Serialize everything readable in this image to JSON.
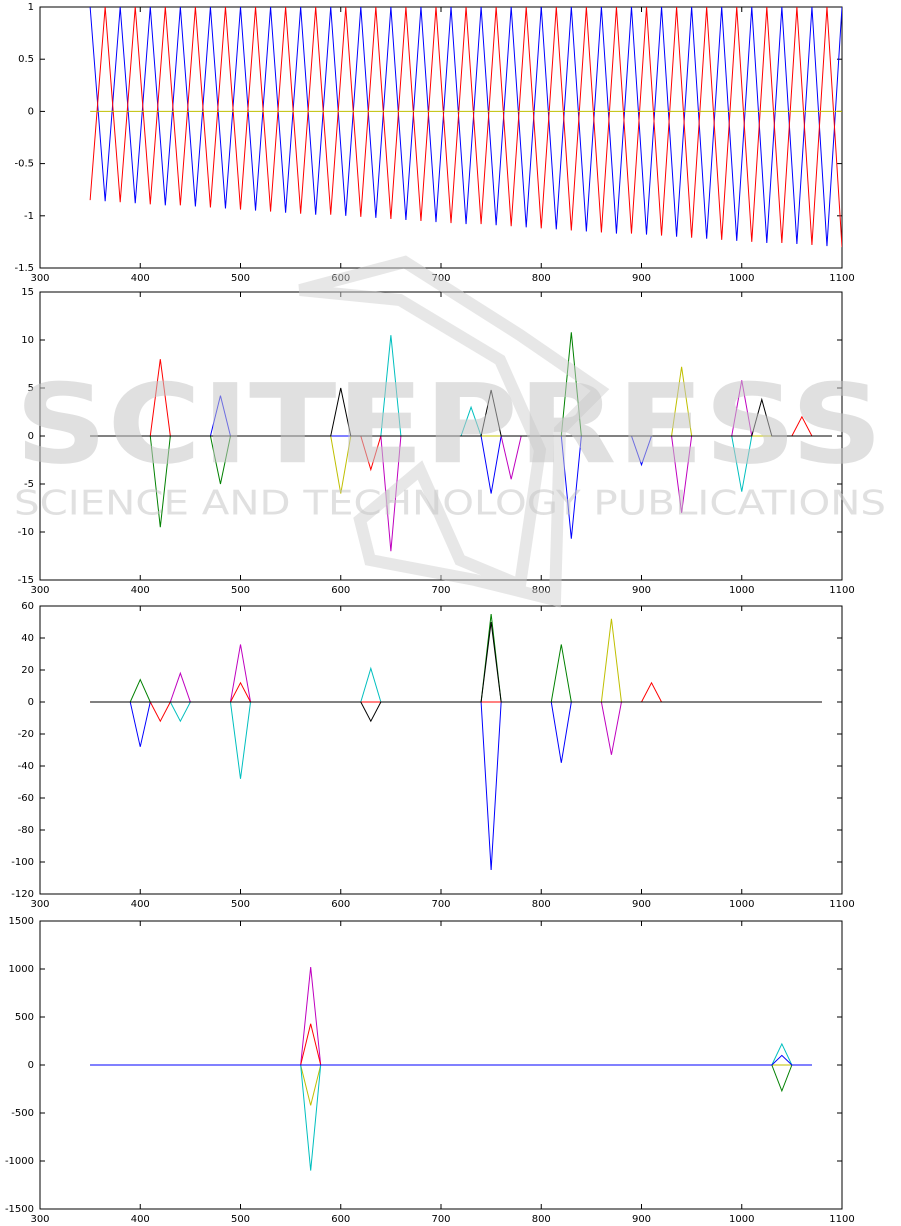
{
  "chart_data": [
    {
      "type": "line",
      "xlim": [
        300,
        1100
      ],
      "xticks": [
        300,
        400,
        500,
        600,
        700,
        800,
        900,
        1000,
        1100
      ],
      "ylim": [
        -1.5,
        1
      ],
      "yticks": [
        -1.5,
        -1,
        -0.5,
        0,
        0.5,
        1
      ],
      "x": [
        350,
        365,
        380,
        395,
        410,
        425,
        440,
        455,
        470,
        485,
        500,
        515,
        530,
        545,
        560,
        575,
        590,
        605,
        620,
        635,
        650,
        665,
        680,
        695,
        710,
        725,
        740,
        755,
        770,
        785,
        800,
        815,
        830,
        845,
        860,
        875,
        890,
        905,
        920,
        935,
        950,
        965,
        980,
        995,
        1010,
        1025,
        1040,
        1055,
        1070,
        1085,
        1100
      ],
      "series": [
        {
          "color": "#0000ff",
          "values": [
            1,
            -0.86,
            1,
            -0.88,
            1,
            -0.9,
            1,
            -0.91,
            1,
            -0.93,
            1,
            -0.95,
            1,
            -0.97,
            1,
            -0.99,
            1,
            -1.0,
            1,
            -1.02,
            1,
            -1.04,
            1,
            -1.06,
            1,
            -1.08,
            1,
            -1.09,
            1,
            -1.11,
            1,
            -1.13,
            1,
            -1.15,
            1,
            -1.17,
            1,
            -1.18,
            1,
            -1.2,
            1,
            -1.22,
            1,
            -1.24,
            1,
            -1.26,
            1,
            -1.27,
            1,
            -1.29,
            1
          ]
        },
        {
          "color": "#ff0000",
          "values": [
            -0.85,
            1,
            -0.87,
            1,
            -0.89,
            1,
            -0.9,
            1,
            -0.92,
            1,
            -0.94,
            1,
            -0.96,
            1,
            -0.98,
            1,
            -0.99,
            1,
            -1.01,
            1,
            -1.03,
            1,
            -1.05,
            1,
            -1.07,
            1,
            -1.08,
            1,
            -1.1,
            1,
            -1.12,
            1,
            -1.14,
            1,
            -1.16,
            1,
            -1.17,
            1,
            -1.19,
            1,
            -1.21,
            1,
            -1.23,
            1,
            -1.25,
            1,
            -1.26,
            1,
            -1.28,
            1,
            -1.3
          ]
        },
        {
          "color": "#bfbf00",
          "x": [
            350,
            1100
          ],
          "values": [
            0,
            0
          ]
        }
      ]
    },
    {
      "type": "line",
      "xlim": [
        300,
        1100
      ],
      "xticks": [
        300,
        400,
        500,
        600,
        700,
        800,
        900,
        1000,
        1100
      ],
      "ylim": [
        -15,
        15
      ],
      "yticks": [
        -15,
        -10,
        -5,
        0,
        5,
        10,
        15
      ],
      "series": [
        {
          "color": "#ff0000",
          "x": [
            350,
            410,
            420,
            430,
            620,
            630,
            640,
            1050,
            1060,
            1070,
            1090
          ],
          "values": [
            0,
            0,
            8,
            0,
            0,
            -3.5,
            0,
            0,
            2,
            0,
            0
          ]
        },
        {
          "color": "#008000",
          "x": [
            350,
            410,
            420,
            430,
            470,
            480,
            490,
            820,
            830,
            840,
            1090
          ],
          "values": [
            0,
            0,
            -9.5,
            0,
            0,
            -5,
            0,
            0,
            10.8,
            0,
            0
          ]
        },
        {
          "color": "#bf00bf",
          "x": [
            350,
            640,
            650,
            660,
            760,
            770,
            780,
            930,
            940,
            950,
            990,
            1000,
            1010,
            1090
          ],
          "values": [
            0,
            0,
            -12,
            0,
            0,
            -4.5,
            0,
            0,
            -8,
            0,
            0,
            5.8,
            0,
            0
          ]
        },
        {
          "color": "#00bfbf",
          "x": [
            350,
            640,
            650,
            660,
            720,
            730,
            740,
            990,
            1000,
            1010,
            1090
          ],
          "values": [
            0,
            0,
            10.5,
            0,
            0,
            3,
            0,
            0,
            -5.8,
            0,
            0
          ]
        },
        {
          "color": "#0000ff",
          "x": [
            350,
            470,
            480,
            490,
            740,
            750,
            760,
            820,
            830,
            840,
            890,
            900,
            910,
            1090
          ],
          "values": [
            0,
            0,
            4.2,
            0,
            0,
            -6,
            0,
            0,
            -10.7,
            0,
            0,
            -3,
            0,
            0
          ]
        },
        {
          "color": "#bfbf00",
          "x": [
            350,
            590,
            600,
            610,
            930,
            940,
            950,
            1090
          ],
          "values": [
            0,
            0,
            -6,
            0,
            0,
            7.2,
            0,
            0
          ]
        },
        {
          "color": "#000000",
          "x": [
            350,
            590,
            600,
            610,
            740,
            750,
            760,
            1010,
            1020,
            1030,
            1090
          ],
          "values": [
            0,
            0,
            5,
            0,
            0,
            4.8,
            0,
            0,
            3.8,
            0,
            0
          ]
        }
      ]
    },
    {
      "type": "line",
      "xlim": [
        300,
        1100
      ],
      "xticks": [
        300,
        400,
        500,
        600,
        700,
        800,
        900,
        1000,
        1100
      ],
      "ylim": [
        -120,
        60
      ],
      "yticks": [
        -120,
        -100,
        -80,
        -60,
        -40,
        -20,
        0,
        20,
        40,
        60
      ],
      "series": [
        {
          "color": "#0000ff",
          "x": [
            350,
            390,
            400,
            410,
            740,
            750,
            760,
            810,
            820,
            830,
            1080
          ],
          "values": [
            0,
            0,
            -28,
            0,
            0,
            -105,
            0,
            0,
            -38,
            0,
            0
          ]
        },
        {
          "color": "#008000",
          "x": [
            350,
            390,
            400,
            410,
            740,
            750,
            760,
            810,
            820,
            830,
            1080
          ],
          "values": [
            0,
            0,
            14,
            0,
            0,
            55,
            0,
            0,
            36,
            0,
            0
          ]
        },
        {
          "color": "#00bfbf",
          "x": [
            350,
            430,
            440,
            450,
            490,
            500,
            510,
            620,
            630,
            640,
            1080
          ],
          "values": [
            0,
            0,
            -12,
            0,
            0,
            -48,
            0,
            0,
            21,
            0,
            0
          ]
        },
        {
          "color": "#bf00bf",
          "x": [
            350,
            430,
            440,
            450,
            490,
            500,
            510,
            860,
            870,
            880,
            1080
          ],
          "values": [
            0,
            0,
            18,
            0,
            0,
            36,
            0,
            0,
            -33,
            0,
            0
          ]
        },
        {
          "color": "#bfbf00",
          "x": [
            350,
            860,
            870,
            880,
            1080
          ],
          "values": [
            0,
            0,
            52,
            0,
            0
          ]
        },
        {
          "color": "#ff0000",
          "x": [
            350,
            410,
            420,
            430,
            490,
            500,
            510,
            900,
            910,
            920,
            1080
          ],
          "values": [
            0,
            0,
            -12,
            0,
            0,
            12,
            0,
            0,
            12,
            0,
            0
          ]
        },
        {
          "color": "#000000",
          "x": [
            350,
            620,
            630,
            640,
            740,
            750,
            760,
            1080
          ],
          "values": [
            0,
            0,
            -12,
            0,
            0,
            50,
            0,
            0
          ]
        }
      ]
    },
    {
      "type": "line",
      "xlim": [
        300,
        1100
      ],
      "xticks": [
        300,
        400,
        500,
        600,
        700,
        800,
        900,
        1000,
        1100
      ],
      "ylim": [
        -1500,
        1500
      ],
      "yticks": [
        -1500,
        -1000,
        -500,
        0,
        500,
        1000,
        1500
      ],
      "series": [
        {
          "color": "#bf00bf",
          "x": [
            350,
            560,
            570,
            580,
            1070
          ],
          "values": [
            0,
            0,
            1020,
            0,
            0
          ]
        },
        {
          "color": "#ff0000",
          "x": [
            350,
            560,
            570,
            580,
            1070
          ],
          "values": [
            0,
            0,
            430,
            0,
            0
          ]
        },
        {
          "color": "#bfbf00",
          "x": [
            350,
            560,
            570,
            580,
            1070
          ],
          "values": [
            0,
            0,
            -420,
            0,
            0
          ]
        },
        {
          "color": "#00bfbf",
          "x": [
            350,
            560,
            570,
            580,
            1030,
            1040,
            1050,
            1070
          ],
          "values": [
            0,
            0,
            -1100,
            0,
            0,
            220,
            0,
            0
          ]
        },
        {
          "color": "#008000",
          "x": [
            350,
            1030,
            1040,
            1050,
            1070
          ],
          "values": [
            0,
            0,
            -270,
            0,
            0
          ]
        },
        {
          "color": "#0000ff",
          "x": [
            350,
            1030,
            1040,
            1050,
            1070
          ],
          "values": [
            0,
            0,
            100,
            0,
            0
          ]
        }
      ]
    }
  ],
  "watermark": {
    "title": "SCITEPRESS",
    "subtitle": "SCIENCE AND TECHNOLOGY PUBLICATIONS"
  }
}
